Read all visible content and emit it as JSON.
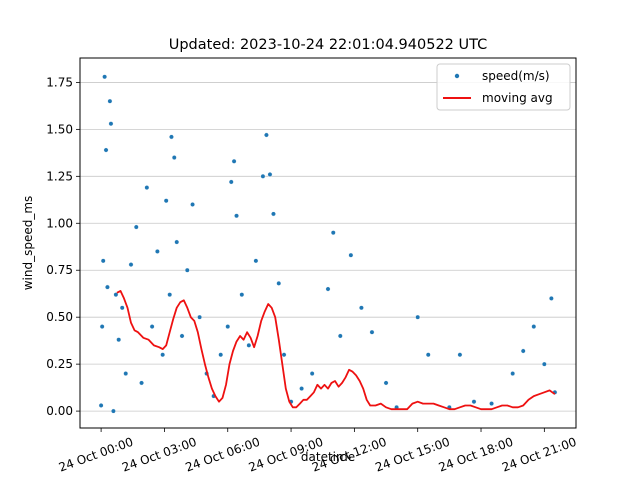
{
  "chart_data": {
    "type": "scatter",
    "title": "Updated: 2023-10-24 22:01:04.940522 UTC",
    "xlabel": "datetime",
    "ylabel": "wind_speed_ms",
    "xlim": [
      "2023-10-23T23:00",
      "2023-10-24T22:30"
    ],
    "ylim": [
      -0.09,
      1.88
    ],
    "yticks": [
      0.0,
      0.25,
      0.5,
      0.75,
      1.0,
      1.25,
      1.5,
      1.75
    ],
    "ytick_labels": [
      "0.00",
      "0.25",
      "0.50",
      "0.75",
      "1.00",
      "1.25",
      "1.50",
      "1.75"
    ],
    "xticks": [
      "2023-10-24T00:00",
      "2023-10-24T03:00",
      "2023-10-24T06:00",
      "2023-10-24T09:00",
      "2023-10-24T12:00",
      "2023-10-24T15:00",
      "2023-10-24T18:00",
      "2023-10-24T21:00"
    ],
    "xtick_labels": [
      "24 Oct 00:00",
      "24 Oct 03:00",
      "24 Oct 06:00",
      "24 Oct 09:00",
      "24 Oct 12:00",
      "24 Oct 15:00",
      "24 Oct 18:00",
      "24 Oct 21:00"
    ],
    "grid": "horizontal",
    "legend_placement": "upper-right",
    "series": [
      {
        "name": "speed(m/s)",
        "kind": "scatter",
        "color": "#1f77b4",
        "points": [
          [
            "2023-10-24T00:00",
            0.03
          ],
          [
            "2023-10-24T00:03",
            0.45
          ],
          [
            "2023-10-24T00:06",
            0.8
          ],
          [
            "2023-10-24T00:10",
            1.78
          ],
          [
            "2023-10-24T00:14",
            1.39
          ],
          [
            "2023-10-24T00:18",
            0.66
          ],
          [
            "2023-10-24T00:25",
            1.65
          ],
          [
            "2023-10-24T00:28",
            1.53
          ],
          [
            "2023-10-24T00:35",
            0.0
          ],
          [
            "2023-10-24T00:42",
            0.62
          ],
          [
            "2023-10-24T00:50",
            0.38
          ],
          [
            "2023-10-24T01:00",
            0.55
          ],
          [
            "2023-10-24T01:10",
            0.2
          ],
          [
            "2023-10-24T01:25",
            0.78
          ],
          [
            "2023-10-24T01:40",
            0.98
          ],
          [
            "2023-10-24T01:55",
            0.15
          ],
          [
            "2023-10-24T02:10",
            1.19
          ],
          [
            "2023-10-24T02:25",
            0.45
          ],
          [
            "2023-10-24T02:40",
            0.85
          ],
          [
            "2023-10-24T02:55",
            0.3
          ],
          [
            "2023-10-24T03:05",
            1.12
          ],
          [
            "2023-10-24T03:15",
            0.62
          ],
          [
            "2023-10-24T03:20",
            1.46
          ],
          [
            "2023-10-24T03:28",
            1.35
          ],
          [
            "2023-10-24T03:35",
            0.9
          ],
          [
            "2023-10-24T03:50",
            0.4
          ],
          [
            "2023-10-24T04:05",
            0.75
          ],
          [
            "2023-10-24T04:20",
            1.1
          ],
          [
            "2023-10-24T04:40",
            0.5
          ],
          [
            "2023-10-24T05:00",
            0.2
          ],
          [
            "2023-10-24T05:20",
            0.08
          ],
          [
            "2023-10-24T05:40",
            0.3
          ],
          [
            "2023-10-24T06:00",
            0.45
          ],
          [
            "2023-10-24T06:10",
            1.22
          ],
          [
            "2023-10-24T06:18",
            1.33
          ],
          [
            "2023-10-24T06:25",
            1.04
          ],
          [
            "2023-10-24T06:40",
            0.62
          ],
          [
            "2023-10-24T07:00",
            0.35
          ],
          [
            "2023-10-24T07:20",
            0.8
          ],
          [
            "2023-10-24T07:40",
            1.25
          ],
          [
            "2023-10-24T07:50",
            1.47
          ],
          [
            "2023-10-24T08:00",
            1.26
          ],
          [
            "2023-10-24T08:10",
            1.05
          ],
          [
            "2023-10-24T08:25",
            0.68
          ],
          [
            "2023-10-24T08:40",
            0.3
          ],
          [
            "2023-10-24T09:00",
            0.05
          ],
          [
            "2023-10-24T09:30",
            0.12
          ],
          [
            "2023-10-24T10:00",
            0.2
          ],
          [
            "2023-10-24T10:45",
            0.65
          ],
          [
            "2023-10-24T11:00",
            0.95
          ],
          [
            "2023-10-24T11:20",
            0.4
          ],
          [
            "2023-10-24T11:50",
            0.83
          ],
          [
            "2023-10-24T12:20",
            0.55
          ],
          [
            "2023-10-24T12:50",
            0.42
          ],
          [
            "2023-10-24T13:30",
            0.15
          ],
          [
            "2023-10-24T14:00",
            0.02
          ],
          [
            "2023-10-24T15:00",
            0.5
          ],
          [
            "2023-10-24T15:30",
            0.3
          ],
          [
            "2023-10-24T16:30",
            0.02
          ],
          [
            "2023-10-24T17:00",
            0.3
          ],
          [
            "2023-10-24T17:40",
            0.05
          ],
          [
            "2023-10-24T18:30",
            0.04
          ],
          [
            "2023-10-24T19:30",
            0.2
          ],
          [
            "2023-10-24T20:00",
            0.32
          ],
          [
            "2023-10-24T20:30",
            0.45
          ],
          [
            "2023-10-24T21:00",
            0.25
          ],
          [
            "2023-10-24T21:20",
            0.6
          ],
          [
            "2023-10-24T21:30",
            0.1
          ]
        ]
      },
      {
        "name": "moving avg",
        "kind": "line",
        "color": "#ee1111",
        "points": [
          [
            "2023-10-24T00:45",
            0.63
          ],
          [
            "2023-10-24T00:55",
            0.64
          ],
          [
            "2023-10-24T01:05",
            0.6
          ],
          [
            "2023-10-24T01:15",
            0.55
          ],
          [
            "2023-10-24T01:25",
            0.47
          ],
          [
            "2023-10-24T01:35",
            0.43
          ],
          [
            "2023-10-24T01:45",
            0.42
          ],
          [
            "2023-10-24T02:00",
            0.39
          ],
          [
            "2023-10-24T02:15",
            0.38
          ],
          [
            "2023-10-24T02:30",
            0.35
          ],
          [
            "2023-10-24T02:45",
            0.34
          ],
          [
            "2023-10-24T02:55",
            0.33
          ],
          [
            "2023-10-24T03:05",
            0.35
          ],
          [
            "2023-10-24T03:15",
            0.42
          ],
          [
            "2023-10-24T03:25",
            0.49
          ],
          [
            "2023-10-24T03:35",
            0.55
          ],
          [
            "2023-10-24T03:45",
            0.58
          ],
          [
            "2023-10-24T03:55",
            0.59
          ],
          [
            "2023-10-24T04:05",
            0.55
          ],
          [
            "2023-10-24T04:15",
            0.5
          ],
          [
            "2023-10-24T04:25",
            0.48
          ],
          [
            "2023-10-24T04:35",
            0.42
          ],
          [
            "2023-10-24T04:45",
            0.33
          ],
          [
            "2023-10-24T04:55",
            0.25
          ],
          [
            "2023-10-24T05:05",
            0.18
          ],
          [
            "2023-10-24T05:15",
            0.12
          ],
          [
            "2023-10-24T05:25",
            0.08
          ],
          [
            "2023-10-24T05:35",
            0.05
          ],
          [
            "2023-10-24T05:45",
            0.07
          ],
          [
            "2023-10-24T05:55",
            0.14
          ],
          [
            "2023-10-24T06:05",
            0.25
          ],
          [
            "2023-10-24T06:15",
            0.32
          ],
          [
            "2023-10-24T06:25",
            0.37
          ],
          [
            "2023-10-24T06:35",
            0.4
          ],
          [
            "2023-10-24T06:45",
            0.38
          ],
          [
            "2023-10-24T06:55",
            0.42
          ],
          [
            "2023-10-24T07:05",
            0.39
          ],
          [
            "2023-10-24T07:15",
            0.34
          ],
          [
            "2023-10-24T07:25",
            0.4
          ],
          [
            "2023-10-24T07:35",
            0.48
          ],
          [
            "2023-10-24T07:45",
            0.53
          ],
          [
            "2023-10-24T07:55",
            0.57
          ],
          [
            "2023-10-24T08:05",
            0.55
          ],
          [
            "2023-10-24T08:15",
            0.5
          ],
          [
            "2023-10-24T08:25",
            0.38
          ],
          [
            "2023-10-24T08:35",
            0.25
          ],
          [
            "2023-10-24T08:45",
            0.12
          ],
          [
            "2023-10-24T08:55",
            0.05
          ],
          [
            "2023-10-24T09:05",
            0.02
          ],
          [
            "2023-10-24T09:15",
            0.02
          ],
          [
            "2023-10-24T09:25",
            0.04
          ],
          [
            "2023-10-24T09:35",
            0.06
          ],
          [
            "2023-10-24T09:45",
            0.06
          ],
          [
            "2023-10-24T09:55",
            0.08
          ],
          [
            "2023-10-24T10:05",
            0.1
          ],
          [
            "2023-10-24T10:15",
            0.14
          ],
          [
            "2023-10-24T10:25",
            0.12
          ],
          [
            "2023-10-24T10:35",
            0.14
          ],
          [
            "2023-10-24T10:45",
            0.12
          ],
          [
            "2023-10-24T10:55",
            0.15
          ],
          [
            "2023-10-24T11:05",
            0.16
          ],
          [
            "2023-10-24T11:15",
            0.13
          ],
          [
            "2023-10-24T11:25",
            0.15
          ],
          [
            "2023-10-24T11:35",
            0.18
          ],
          [
            "2023-10-24T11:45",
            0.22
          ],
          [
            "2023-10-24T11:55",
            0.21
          ],
          [
            "2023-10-24T12:05",
            0.19
          ],
          [
            "2023-10-24T12:15",
            0.16
          ],
          [
            "2023-10-24T12:25",
            0.12
          ],
          [
            "2023-10-24T12:35",
            0.06
          ],
          [
            "2023-10-24T12:45",
            0.03
          ],
          [
            "2023-10-24T13:00",
            0.03
          ],
          [
            "2023-10-24T13:15",
            0.04
          ],
          [
            "2023-10-24T13:30",
            0.02
          ],
          [
            "2023-10-24T13:45",
            0.01
          ],
          [
            "2023-10-24T14:00",
            0.01
          ],
          [
            "2023-10-24T14:15",
            0.01
          ],
          [
            "2023-10-24T14:30",
            0.01
          ],
          [
            "2023-10-24T14:45",
            0.04
          ],
          [
            "2023-10-24T15:00",
            0.05
          ],
          [
            "2023-10-24T15:15",
            0.04
          ],
          [
            "2023-10-24T15:30",
            0.04
          ],
          [
            "2023-10-24T15:45",
            0.04
          ],
          [
            "2023-10-24T16:00",
            0.03
          ],
          [
            "2023-10-24T16:15",
            0.02
          ],
          [
            "2023-10-24T16:30",
            0.01
          ],
          [
            "2023-10-24T16:45",
            0.01
          ],
          [
            "2023-10-24T17:00",
            0.02
          ],
          [
            "2023-10-24T17:15",
            0.03
          ],
          [
            "2023-10-24T17:30",
            0.03
          ],
          [
            "2023-10-24T17:45",
            0.02
          ],
          [
            "2023-10-24T18:00",
            0.01
          ],
          [
            "2023-10-24T18:15",
            0.01
          ],
          [
            "2023-10-24T18:30",
            0.01
          ],
          [
            "2023-10-24T18:45",
            0.02
          ],
          [
            "2023-10-24T19:00",
            0.03
          ],
          [
            "2023-10-24T19:15",
            0.03
          ],
          [
            "2023-10-24T19:30",
            0.02
          ],
          [
            "2023-10-24T19:45",
            0.02
          ],
          [
            "2023-10-24T20:00",
            0.03
          ],
          [
            "2023-10-24T20:15",
            0.06
          ],
          [
            "2023-10-24T20:30",
            0.08
          ],
          [
            "2023-10-24T20:45",
            0.09
          ],
          [
            "2023-10-24T21:00",
            0.1
          ],
          [
            "2023-10-24T21:15",
            0.11
          ],
          [
            "2023-10-24T21:30",
            0.09
          ]
        ]
      }
    ]
  }
}
